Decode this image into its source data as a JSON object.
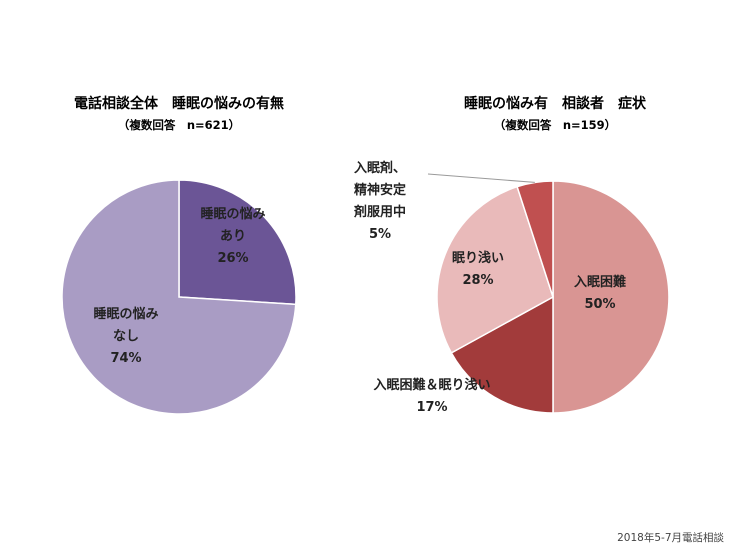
{
  "chart_data": [
    {
      "type": "pie",
      "title": "電話相談全体　睡眠の悩みの有無",
      "subtitle": "（複数回答　n=621）",
      "slices": [
        {
          "label_lines": [
            "睡眠の悩み",
            "あり"
          ],
          "value": 26,
          "value_text": "26%",
          "color": "#6B5596"
        },
        {
          "label_lines": [
            "睡眠の悩み",
            "なし"
          ],
          "value": 74,
          "value_text": "74%",
          "color": "#A99CC4"
        }
      ]
    },
    {
      "type": "pie",
      "title": "睡眠の悩み有　相談者　症状",
      "subtitle": "（複数回答　n=159）",
      "slices": [
        {
          "label_lines": [
            "入眠困難"
          ],
          "value": 50,
          "value_text": "50%",
          "color": "#D99593"
        },
        {
          "label_lines": [
            "入眠困難＆眠り浅い"
          ],
          "value": 17,
          "value_text": "17%",
          "color": "#A23B3B"
        },
        {
          "label_lines": [
            "眠り浅い"
          ],
          "value": 28,
          "value_text": "28%",
          "color": "#E9BABA"
        },
        {
          "label_lines": [
            "入眠剤、",
            "精神安定",
            "剤服用中"
          ],
          "value": 5,
          "value_text": "5%",
          "color": "#C05050"
        }
      ]
    }
  ],
  "footer": "2018年5-7月電話相談"
}
